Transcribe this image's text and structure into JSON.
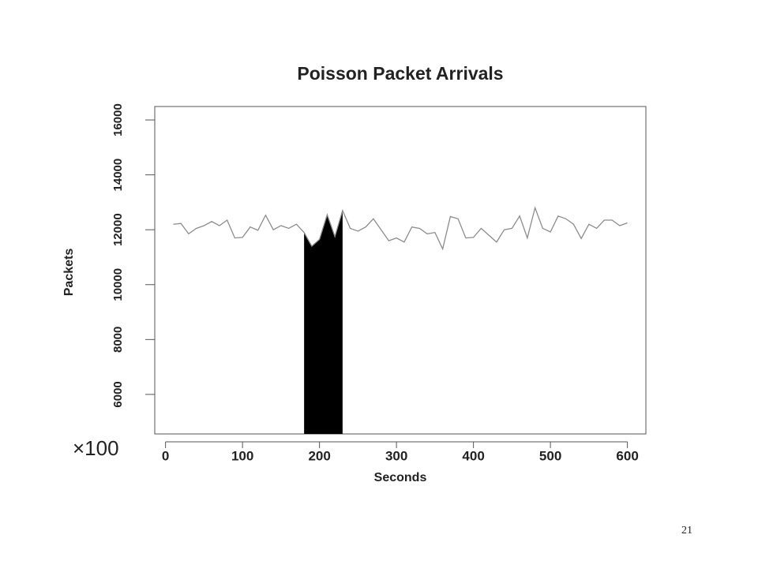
{
  "chart_data": {
    "type": "line",
    "title": "Poisson Packet Arrivals",
    "x_label": "Seconds",
    "y_label": "Packets",
    "x": [
      10,
      20,
      30,
      40,
      50,
      60,
      70,
      80,
      90,
      100,
      110,
      120,
      130,
      140,
      150,
      160,
      170,
      180,
      190,
      200,
      210,
      220,
      230,
      240,
      250,
      260,
      270,
      280,
      290,
      300,
      310,
      320,
      330,
      340,
      350,
      360,
      370,
      380,
      390,
      400,
      410,
      420,
      430,
      440,
      450,
      460,
      470,
      480,
      490,
      500,
      510,
      520,
      530,
      540,
      550,
      560,
      570,
      580,
      590,
      600
    ],
    "values": [
      12200,
      12230,
      11850,
      12050,
      12150,
      12300,
      12150,
      12350,
      11700,
      11720,
      12100,
      11980,
      12530,
      12000,
      12150,
      12050,
      12200,
      11900,
      11400,
      11650,
      12550,
      11750,
      12700,
      12050,
      11950,
      12100,
      12400,
      12000,
      11600,
      11700,
      11550,
      12100,
      12050,
      11850,
      11900,
      11300,
      12480,
      12400,
      11700,
      11720,
      12050,
      11800,
      11550,
      12000,
      12050,
      12500,
      11700,
      12800,
      12050,
      11920,
      12500,
      12400,
      12200,
      11680,
      12200,
      12050,
      12350,
      12350,
      12150,
      12250
    ],
    "color": "#8c8c8c",
    "shade_range": [
      180,
      230
    ],
    "shade_color": "#000000",
    "xlim": [
      -14,
      624
    ],
    "ylim": [
      4560,
      16490
    ],
    "xticks": [
      0,
      100,
      200,
      300,
      400,
      500,
      600
    ],
    "yticks": [
      6000,
      8000,
      10000,
      12000,
      14000,
      16000
    ],
    "annotation": "×100",
    "annotation_color": "#f28a1a"
  },
  "slide_number": "21"
}
